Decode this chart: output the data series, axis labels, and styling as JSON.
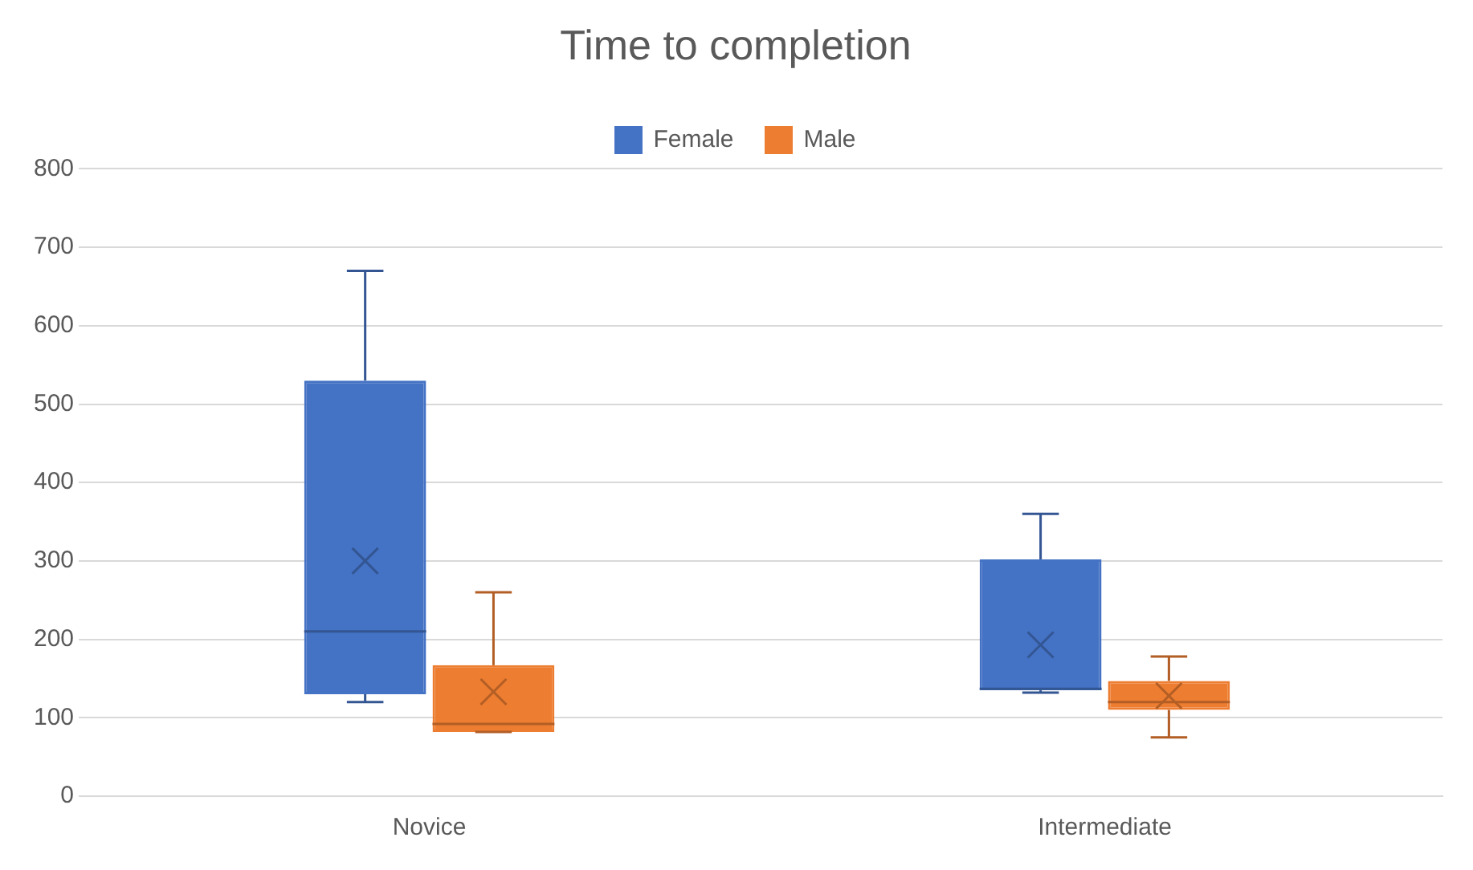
{
  "chart_data": {
    "type": "box",
    "title": "Time to completion",
    "categories": [
      "Novice",
      "Intermediate"
    ],
    "series": [
      {
        "name": "Female",
        "color": "#4472c4",
        "boxes": [
          {
            "low": 120,
            "q1": 130,
            "median": 210,
            "q3": 530,
            "high": 670,
            "mean": 300
          },
          {
            "low": 132,
            "q1": 135,
            "median": 137,
            "q3": 302,
            "high": 360,
            "mean": 193
          }
        ]
      },
      {
        "name": "Male",
        "color": "#ed7d31",
        "boxes": [
          {
            "low": 82,
            "q1": 82,
            "median": 92,
            "q3": 167,
            "high": 260,
            "mean": 133
          },
          {
            "low": 75,
            "q1": 110,
            "median": 120,
            "q3": 147,
            "high": 178,
            "mean": 128
          }
        ]
      }
    ],
    "ylim": [
      0,
      800
    ],
    "yticks": [
      0,
      100,
      200,
      300,
      400,
      500,
      600,
      700,
      800
    ],
    "grid": "y",
    "legend": "top",
    "marker": "cross"
  }
}
